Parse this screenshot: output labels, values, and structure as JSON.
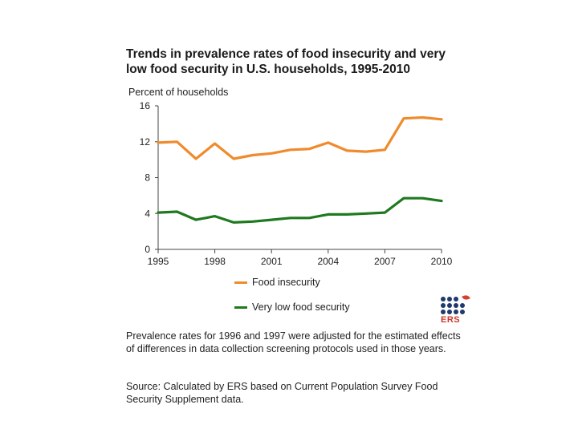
{
  "chart_data": {
    "type": "line",
    "title": "Trends in prevalence rates of food insecurity and very low food security in U.S. households, 1995-2010",
    "ylabel": "Percent of households",
    "xlabel": "",
    "x": [
      1995,
      1996,
      1997,
      1998,
      1999,
      2000,
      2001,
      2002,
      2003,
      2004,
      2005,
      2006,
      2007,
      2008,
      2009,
      2010
    ],
    "xticks": [
      "1995",
      "1998",
      "2001",
      "2004",
      "2007",
      "2010"
    ],
    "yticks": [
      "0",
      "4",
      "8",
      "12",
      "16"
    ],
    "ylim": [
      0,
      16
    ],
    "xlim": [
      1995,
      2010
    ],
    "grid": false,
    "series": [
      {
        "name": "Food insecurity",
        "color": "#ef8b2c",
        "values": [
          11.9,
          12.0,
          10.1,
          11.8,
          10.1,
          10.5,
          10.7,
          11.1,
          11.2,
          11.9,
          11.0,
          10.9,
          11.1,
          14.6,
          14.7,
          14.5
        ]
      },
      {
        "name": "Very low food security",
        "color": "#1f7a1f",
        "values": [
          4.1,
          4.2,
          3.3,
          3.7,
          3.0,
          3.1,
          3.3,
          3.5,
          3.5,
          3.9,
          3.9,
          4.0,
          4.1,
          5.7,
          5.7,
          5.4
        ]
      }
    ]
  },
  "logo": {
    "text": "ERS"
  },
  "notes": {
    "adjustment": "Prevalence rates for 1996 and 1997 were adjusted for the estimated effects of differences in data collection screening protocols used in those years.",
    "source": "Source: Calculated by ERS based on Current Population Survey Food Security Supplement data."
  }
}
